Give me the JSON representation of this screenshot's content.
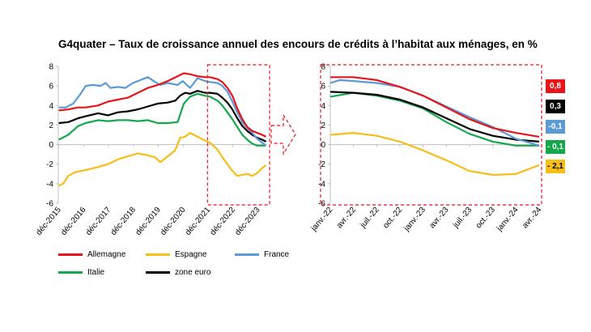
{
  "title": "G4quater – Taux de croissance annuel des encours de crédits à l’habitat aux ménages, en %",
  "colors": {
    "Allemagne": "#e8141b",
    "Espagne": "#f7bd19",
    "France": "#5b9bd5",
    "Italie": "#15a74c",
    "zone euro": "#000000",
    "frame": "#e8141b"
  },
  "legend": {
    "allemagne": "Allemagne",
    "espagne": "Espagne",
    "france": "France",
    "italie": "Italie",
    "zone_euro": "zone euro"
  },
  "badges": [
    {
      "label": "0,8",
      "series": "Allemagne",
      "bg": "#e8141b",
      "fg": "#ffffff"
    },
    {
      "label": "0,3",
      "series": "zone euro",
      "bg": "#000000",
      "fg": "#ffffff"
    },
    {
      "label": "-0,1",
      "series": "France",
      "bg": "#5b9bd5",
      "fg": "#ffffff"
    },
    {
      "label": "- 0,1",
      "series": "Italie",
      "bg": "#15a74c",
      "fg": "#ffffff"
    },
    {
      "label": "- 2,1",
      "series": "Espagne",
      "bg": "#f7bd19",
      "fg": "#000000"
    }
  ],
  "chart_data": [
    {
      "type": "line",
      "ylim": [
        -6,
        8
      ],
      "yticks": [
        "-6",
        "-4",
        "-2",
        "0",
        "2",
        "4",
        "6",
        "8"
      ],
      "xlim": [
        2015.9,
        2024.3
      ],
      "xticks": [
        "déc-2015",
        "déc-2016",
        "déc-2017",
        "déc-2018",
        "déc-2019",
        "déc-2020",
        "déc-2021",
        "déc-2022",
        "déc-2023"
      ],
      "grid": false,
      "series": [
        {
          "name": "France",
          "points": [
            [
              2015.92,
              3.8
            ],
            [
              2016.2,
              3.8
            ],
            [
              2016.5,
              4.2
            ],
            [
              2016.8,
              5.2
            ],
            [
              2017.0,
              6.0
            ],
            [
              2017.3,
              6.1
            ],
            [
              2017.6,
              6.0
            ],
            [
              2017.8,
              6.3
            ],
            [
              2018.0,
              5.8
            ],
            [
              2018.3,
              5.9
            ],
            [
              2018.6,
              5.8
            ],
            [
              2018.9,
              6.3
            ],
            [
              2019.2,
              6.6
            ],
            [
              2019.5,
              6.9
            ],
            [
              2019.8,
              6.4
            ],
            [
              2020.0,
              6.1
            ],
            [
              2020.3,
              6.3
            ],
            [
              2020.7,
              6.1
            ],
            [
              2020.9,
              6.5
            ],
            [
              2021.2,
              5.8
            ],
            [
              2021.5,
              6.8
            ],
            [
              2021.8,
              6.5
            ],
            [
              2022.0,
              6.4
            ],
            [
              2022.3,
              6.3
            ],
            [
              2022.5,
              6.0
            ],
            [
              2022.7,
              5.4
            ],
            [
              2022.9,
              4.4
            ],
            [
              2023.1,
              3.3
            ],
            [
              2023.3,
              2.3
            ],
            [
              2023.5,
              1.7
            ],
            [
              2023.7,
              1.2
            ],
            [
              2023.9,
              0.6
            ],
            [
              2024.1,
              0.2
            ],
            [
              2024.25,
              -0.1
            ]
          ]
        },
        {
          "name": "Allemagne",
          "points": [
            [
              2015.92,
              3.5
            ],
            [
              2016.3,
              3.6
            ],
            [
              2016.7,
              3.8
            ],
            [
              2017.0,
              3.8
            ],
            [
              2017.5,
              4.0
            ],
            [
              2017.9,
              4.4
            ],
            [
              2018.3,
              4.6
            ],
            [
              2018.7,
              4.8
            ],
            [
              2019.1,
              5.3
            ],
            [
              2019.5,
              5.8
            ],
            [
              2019.9,
              6.1
            ],
            [
              2020.3,
              6.5
            ],
            [
              2020.7,
              7.0
            ],
            [
              2020.95,
              7.3
            ],
            [
              2021.2,
              7.2
            ],
            [
              2021.5,
              7.0
            ],
            [
              2021.8,
              6.9
            ],
            [
              2022.0,
              6.9
            ],
            [
              2022.3,
              6.7
            ],
            [
              2022.5,
              6.4
            ],
            [
              2022.7,
              5.8
            ],
            [
              2022.9,
              5.0
            ],
            [
              2023.1,
              3.7
            ],
            [
              2023.3,
              2.6
            ],
            [
              2023.5,
              1.8
            ],
            [
              2023.7,
              1.4
            ],
            [
              2023.9,
              1.2
            ],
            [
              2024.1,
              1.0
            ],
            [
              2024.25,
              0.8
            ]
          ]
        },
        {
          "name": "zone euro",
          "points": [
            [
              2015.92,
              2.2
            ],
            [
              2016.3,
              2.3
            ],
            [
              2016.7,
              2.7
            ],
            [
              2017.0,
              2.9
            ],
            [
              2017.5,
              3.2
            ],
            [
              2017.9,
              3.0
            ],
            [
              2018.3,
              3.3
            ],
            [
              2018.7,
              3.4
            ],
            [
              2019.1,
              3.6
            ],
            [
              2019.5,
              3.9
            ],
            [
              2019.9,
              4.2
            ],
            [
              2020.3,
              4.3
            ],
            [
              2020.6,
              4.5
            ],
            [
              2020.8,
              5.0
            ],
            [
              2021.0,
              5.3
            ],
            [
              2021.2,
              5.2
            ],
            [
              2021.5,
              5.5
            ],
            [
              2021.8,
              5.3
            ],
            [
              2022.0,
              5.3
            ],
            [
              2022.3,
              5.2
            ],
            [
              2022.5,
              4.8
            ],
            [
              2022.7,
              4.3
            ],
            [
              2022.9,
              3.6
            ],
            [
              2023.1,
              2.7
            ],
            [
              2023.3,
              1.9
            ],
            [
              2023.5,
              1.4
            ],
            [
              2023.7,
              1.0
            ],
            [
              2023.9,
              0.7
            ],
            [
              2024.1,
              0.5
            ],
            [
              2024.25,
              0.3
            ]
          ]
        },
        {
          "name": "Italie",
          "points": [
            [
              2015.92,
              0.5
            ],
            [
              2016.3,
              1.0
            ],
            [
              2016.7,
              1.9
            ],
            [
              2017.0,
              2.2
            ],
            [
              2017.5,
              2.5
            ],
            [
              2017.9,
              2.4
            ],
            [
              2018.3,
              2.5
            ],
            [
              2018.7,
              2.5
            ],
            [
              2019.1,
              2.4
            ],
            [
              2019.5,
              2.5
            ],
            [
              2019.9,
              2.2
            ],
            [
              2020.3,
              2.2
            ],
            [
              2020.7,
              2.3
            ],
            [
              2020.95,
              4.2
            ],
            [
              2021.2,
              4.9
            ],
            [
              2021.5,
              5.2
            ],
            [
              2021.8,
              5.0
            ],
            [
              2022.0,
              4.9
            ],
            [
              2022.3,
              4.5
            ],
            [
              2022.5,
              4.0
            ],
            [
              2022.7,
              3.3
            ],
            [
              2022.9,
              2.6
            ],
            [
              2023.1,
              1.8
            ],
            [
              2023.3,
              1.0
            ],
            [
              2023.5,
              0.5
            ],
            [
              2023.7,
              0.1
            ],
            [
              2023.9,
              -0.1
            ],
            [
              2024.1,
              -0.1
            ],
            [
              2024.25,
              -0.1
            ]
          ]
        },
        {
          "name": "Espagne",
          "points": [
            [
              2015.92,
              -4.2
            ],
            [
              2016.1,
              -4.0
            ],
            [
              2016.3,
              -3.2
            ],
            [
              2016.6,
              -2.8
            ],
            [
              2017.0,
              -2.6
            ],
            [
              2017.5,
              -2.3
            ],
            [
              2017.9,
              -2.0
            ],
            [
              2018.3,
              -1.5
            ],
            [
              2018.7,
              -1.2
            ],
            [
              2019.1,
              -0.9
            ],
            [
              2019.5,
              -1.1
            ],
            [
              2019.8,
              -1.3
            ],
            [
              2020.0,
              -1.8
            ],
            [
              2020.3,
              -1.2
            ],
            [
              2020.6,
              -0.6
            ],
            [
              2020.8,
              0.7
            ],
            [
              2021.0,
              0.8
            ],
            [
              2021.2,
              1.2
            ],
            [
              2021.5,
              0.8
            ],
            [
              2021.8,
              0.4
            ],
            [
              2022.0,
              0.2
            ],
            [
              2022.3,
              -0.5
            ],
            [
              2022.5,
              -1.3
            ],
            [
              2022.7,
              -2.0
            ],
            [
              2022.9,
              -2.7
            ],
            [
              2023.1,
              -3.2
            ],
            [
              2023.3,
              -3.1
            ],
            [
              2023.5,
              -3.0
            ],
            [
              2023.7,
              -3.2
            ],
            [
              2023.9,
              -2.9
            ],
            [
              2024.1,
              -2.4
            ],
            [
              2024.25,
              -2.1
            ]
          ]
        }
      ]
    },
    {
      "type": "line",
      "ylim": [
        -6,
        8
      ],
      "yticks": [
        "-6",
        "-4",
        "-2",
        "0",
        "2",
        "4",
        "6",
        "8"
      ],
      "xlim": [
        2022.0,
        2024.25
      ],
      "xticks": [
        "janv.-22",
        "avr.-22",
        "juil.-22",
        "oct.-22",
        "janv.-23",
        "avr.-23",
        "juil.-23",
        "oct.-23",
        "janv.-24",
        "avr.-24"
      ],
      "grid": false,
      "series": [
        {
          "name": "Allemagne",
          "points": [
            [
              2022.0,
              6.9
            ],
            [
              2022.25,
              6.9
            ],
            [
              2022.5,
              6.6
            ],
            [
              2022.75,
              5.9
            ],
            [
              2023.0,
              5.0
            ],
            [
              2023.25,
              3.8
            ],
            [
              2023.5,
              2.6
            ],
            [
              2023.75,
              1.7
            ],
            [
              2024.0,
              1.2
            ],
            [
              2024.25,
              0.8
            ]
          ]
        },
        {
          "name": "France",
          "points": [
            [
              2022.0,
              6.3
            ],
            [
              2022.1,
              6.6
            ],
            [
              2022.25,
              6.5
            ],
            [
              2022.5,
              6.3
            ],
            [
              2022.75,
              5.9
            ],
            [
              2023.0,
              5.0
            ],
            [
              2023.25,
              3.9
            ],
            [
              2023.5,
              2.8
            ],
            [
              2023.75,
              1.8
            ],
            [
              2024.0,
              0.6
            ],
            [
              2024.25,
              -0.1
            ]
          ]
        },
        {
          "name": "zone euro",
          "points": [
            [
              2022.0,
              5.4
            ],
            [
              2022.25,
              5.3
            ],
            [
              2022.5,
              5.1
            ],
            [
              2022.75,
              4.6
            ],
            [
              2023.0,
              3.8
            ],
            [
              2023.25,
              2.7
            ],
            [
              2023.5,
              1.6
            ],
            [
              2023.75,
              0.9
            ],
            [
              2024.0,
              0.5
            ],
            [
              2024.25,
              0.3
            ]
          ]
        },
        {
          "name": "Italie",
          "points": [
            [
              2022.0,
              4.9
            ],
            [
              2022.25,
              5.3
            ],
            [
              2022.5,
              5.0
            ],
            [
              2022.75,
              4.5
            ],
            [
              2023.0,
              3.7
            ],
            [
              2023.25,
              2.3
            ],
            [
              2023.5,
              1.1
            ],
            [
              2023.75,
              0.3
            ],
            [
              2024.0,
              -0.1
            ],
            [
              2024.25,
              -0.1
            ]
          ]
        },
        {
          "name": "Espagne",
          "points": [
            [
              2022.0,
              1.0
            ],
            [
              2022.25,
              1.2
            ],
            [
              2022.5,
              0.9
            ],
            [
              2022.75,
              0.3
            ],
            [
              2023.0,
              -0.6
            ],
            [
              2023.25,
              -1.6
            ],
            [
              2023.5,
              -2.7
            ],
            [
              2023.75,
              -3.1
            ],
            [
              2024.0,
              -3.0
            ],
            [
              2024.25,
              -2.1
            ]
          ]
        }
      ]
    }
  ]
}
